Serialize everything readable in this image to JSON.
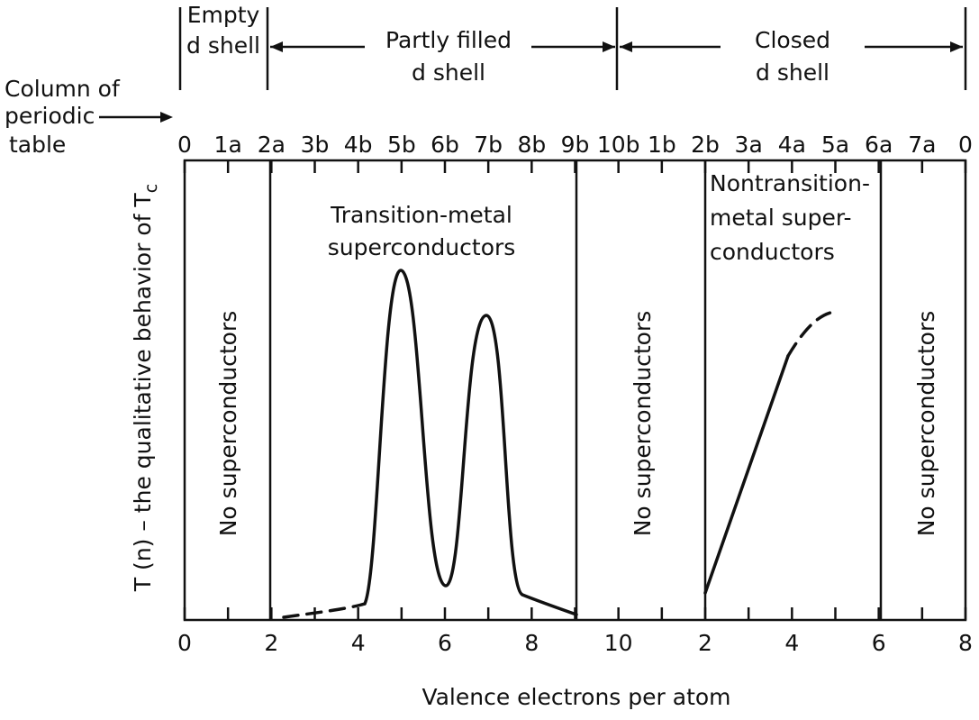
{
  "header": {
    "groups": [
      {
        "line1": "Empty",
        "line2": "d shell"
      },
      {
        "line1": "Partly filled",
        "line2": "d shell"
      },
      {
        "line1": "Closed",
        "line2": "d shell"
      }
    ]
  },
  "column_row": {
    "label": [
      "Column of",
      "periodic",
      "table"
    ],
    "columns": [
      "0",
      "1a",
      "2a",
      "3b",
      "4b",
      "5b",
      "6b",
      "7b",
      "8b",
      "9b",
      "10b",
      "1b",
      "2b",
      "3a",
      "4a",
      "5a",
      "6a",
      "7a",
      "0"
    ]
  },
  "y_axis": {
    "label": "T (n) – the qualitative behavior of T",
    "subscript": "c"
  },
  "x_axis": {
    "ticks": [
      "0",
      "2",
      "4",
      "6",
      "8",
      "10",
      "2",
      "4",
      "6",
      "8"
    ],
    "label": "Valence electrons per atom"
  },
  "regions": {
    "none_1": "No superconductors",
    "transition": [
      "Transition-metal",
      "superconductors"
    ],
    "none_2": "No superconductors",
    "nontransition": [
      "Nontransition-",
      "metal super-",
      "conductors"
    ],
    "none_3": "No superconductors"
  }
}
